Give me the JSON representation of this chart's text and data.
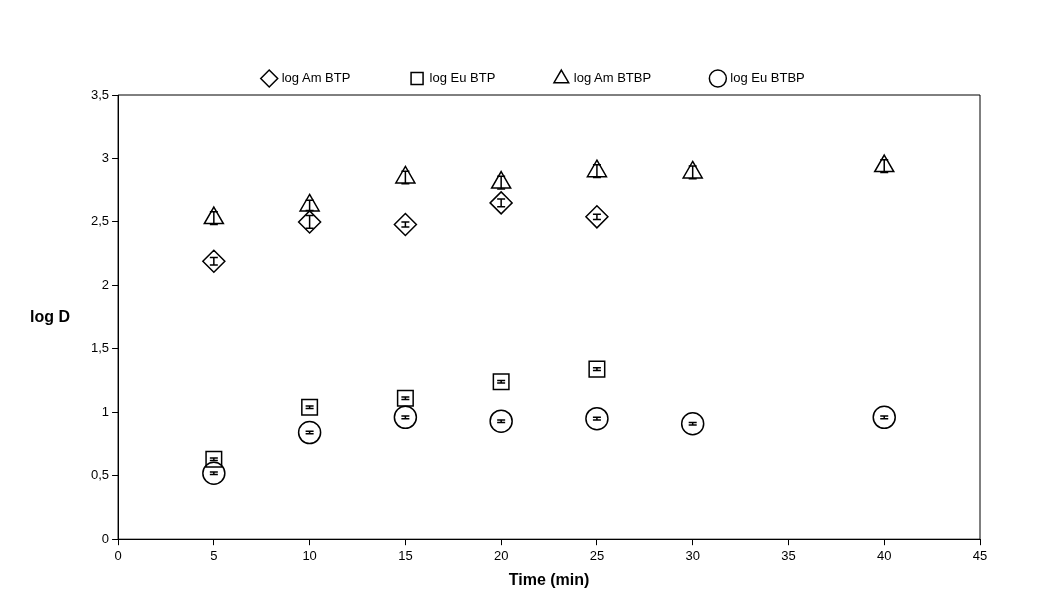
{
  "chart_data": {
    "type": "scatter",
    "xlabel": "Time (min)",
    "ylabel": "log D",
    "legend": "top",
    "grid": false,
    "xlim": [
      0,
      45
    ],
    "xticks": [
      0,
      5,
      10,
      15,
      20,
      25,
      30,
      35,
      40,
      45
    ],
    "ylim": [
      0,
      3.5
    ],
    "yticks": [
      0,
      {
        "value": 0.5,
        "label": "0,5"
      },
      1,
      {
        "value": 1.5,
        "label": "1,5"
      },
      2,
      {
        "value": 2.5,
        "label": "2,5"
      },
      3,
      {
        "value": 3.5,
        "label": "3,5"
      }
    ],
    "series": [
      {
        "name": "log Am BTP",
        "color": "#000000",
        "marker": "diamond",
        "x": [
          5,
          10,
          15,
          20,
          25
        ],
        "values": [
          2.19,
          2.5,
          2.48,
          2.65,
          2.54
        ],
        "errors": [
          0.03,
          0.05,
          0.02,
          0.03,
          0.02
        ]
      },
      {
        "name": "log Eu BTP",
        "color": "#000000",
        "marker": "square",
        "x": [
          5,
          10,
          15,
          20,
          25
        ],
        "values": [
          0.63,
          1.04,
          1.11,
          1.24,
          1.34
        ],
        "errors": [
          0.01,
          0.01,
          0.01,
          0.01,
          0.01
        ]
      },
      {
        "name": "log Am BTBP",
        "color": "#000000",
        "marker": "triangle",
        "x": [
          5,
          10,
          15,
          20,
          25,
          30,
          40
        ],
        "values": [
          2.53,
          2.63,
          2.85,
          2.81,
          2.9,
          2.89,
          2.94
        ],
        "errors": [
          0.05,
          0.04,
          0.05,
          0.05,
          0.05,
          0.05,
          0.05
        ]
      },
      {
        "name": "log Eu BTBP",
        "color": "#000000",
        "marker": "circle",
        "x": [
          5,
          10,
          15,
          20,
          25,
          30,
          40
        ],
        "values": [
          0.52,
          0.84,
          0.96,
          0.93,
          0.95,
          0.91,
          0.96
        ],
        "errors": [
          0.01,
          0.01,
          0.01,
          0.01,
          0.01,
          0.01,
          0.01
        ]
      }
    ]
  }
}
